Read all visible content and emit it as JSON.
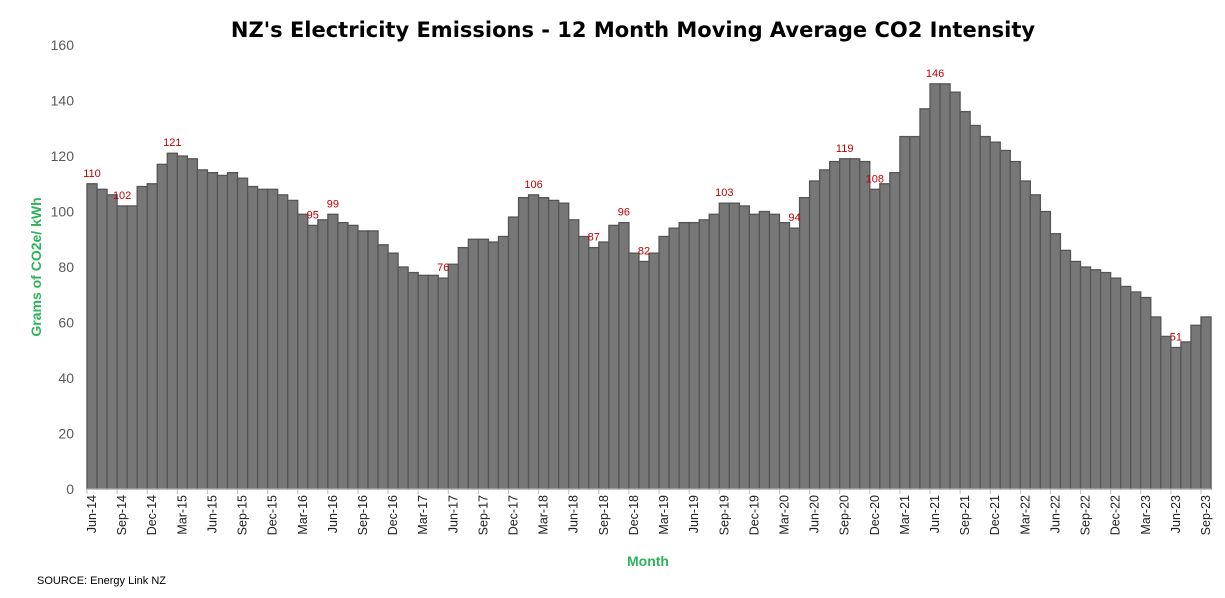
{
  "chart_data": {
    "type": "bar",
    "title": "NZ's Electricity Emissions - 12 Month Moving Average CO2 Intensity",
    "xlabel": "Month",
    "ylabel": "Grams of CO2e/ kWh",
    "source": "SOURCE: Energy Link NZ",
    "ylim": [
      0,
      160
    ],
    "y_ticks": [
      0,
      20,
      40,
      60,
      80,
      100,
      120,
      140,
      160
    ],
    "grid": false,
    "legend": "none",
    "bar_color": "#777777",
    "label_color": "#c00000",
    "axis_label_color": "#2db35a",
    "x_tick_labels": [
      "Jun-14",
      "Sep-14",
      "Dec-14",
      "Mar-15",
      "Jun-15",
      "Sep-15",
      "Dec-15",
      "Mar-16",
      "Jun-16",
      "Sep-16",
      "Dec-16",
      "Mar-17",
      "Jun-17",
      "Sep-17",
      "Dec-17",
      "Mar-18",
      "Jun-18",
      "Sep-18",
      "Dec-18",
      "Mar-19",
      "Jun-19",
      "Sep-19",
      "Dec-19",
      "Mar-20",
      "Jun-20",
      "Sep-20",
      "Dec-20",
      "Mar-21",
      "Jun-21",
      "Sep-21",
      "Dec-21",
      "Mar-22",
      "Jun-22",
      "Sep-22",
      "Dec-22",
      "Mar-23",
      "Jun-23",
      "Sep-23"
    ],
    "x_tick_every_months": 3,
    "values": [
      110,
      108,
      106,
      102,
      102,
      109,
      110,
      117,
      121,
      120,
      119,
      115,
      114,
      113,
      114,
      112,
      109,
      108,
      108,
      106,
      104,
      99,
      95,
      97,
      99,
      96,
      95,
      93,
      93,
      88,
      85,
      80,
      78,
      77,
      77,
      76,
      81,
      87,
      90,
      90,
      89,
      91,
      98,
      105,
      106,
      105,
      104,
      103,
      97,
      91,
      87,
      89,
      95,
      96,
      85,
      82,
      85,
      91,
      94,
      96,
      96,
      97,
      99,
      103,
      103,
      102,
      99,
      100,
      99,
      96,
      94,
      105,
      111,
      115,
      118,
      119,
      119,
      118,
      108,
      110,
      114,
      127,
      127,
      137,
      146,
      146,
      143,
      136,
      131,
      127,
      125,
      122,
      118,
      111,
      106,
      100,
      92,
      86,
      82,
      80,
      79,
      78,
      76,
      73,
      71,
      69,
      62,
      55,
      51,
      53,
      59,
      62
    ],
    "data_labels": [
      {
        "month": "Jun-14",
        "value": 110
      },
      {
        "month": "Sep-14",
        "value": 102
      },
      {
        "month": "Feb-15",
        "value": 121
      },
      {
        "month": "Apr-16",
        "value": 95
      },
      {
        "month": "Jun-16",
        "value": 99
      },
      {
        "month": "May-17",
        "value": 76
      },
      {
        "month": "Feb-18",
        "value": 106
      },
      {
        "month": "Aug-18",
        "value": 87
      },
      {
        "month": "Nov-18",
        "value": 96
      },
      {
        "month": "Jan-19",
        "value": 82
      },
      {
        "month": "Sep-19",
        "value": 103
      },
      {
        "month": "Apr-20",
        "value": 94
      },
      {
        "month": "Sep-20",
        "value": 119
      },
      {
        "month": "Dec-20",
        "value": 108
      },
      {
        "month": "Jun-21",
        "value": 146
      },
      {
        "month": "Jun-23",
        "value": 51
      }
    ]
  }
}
